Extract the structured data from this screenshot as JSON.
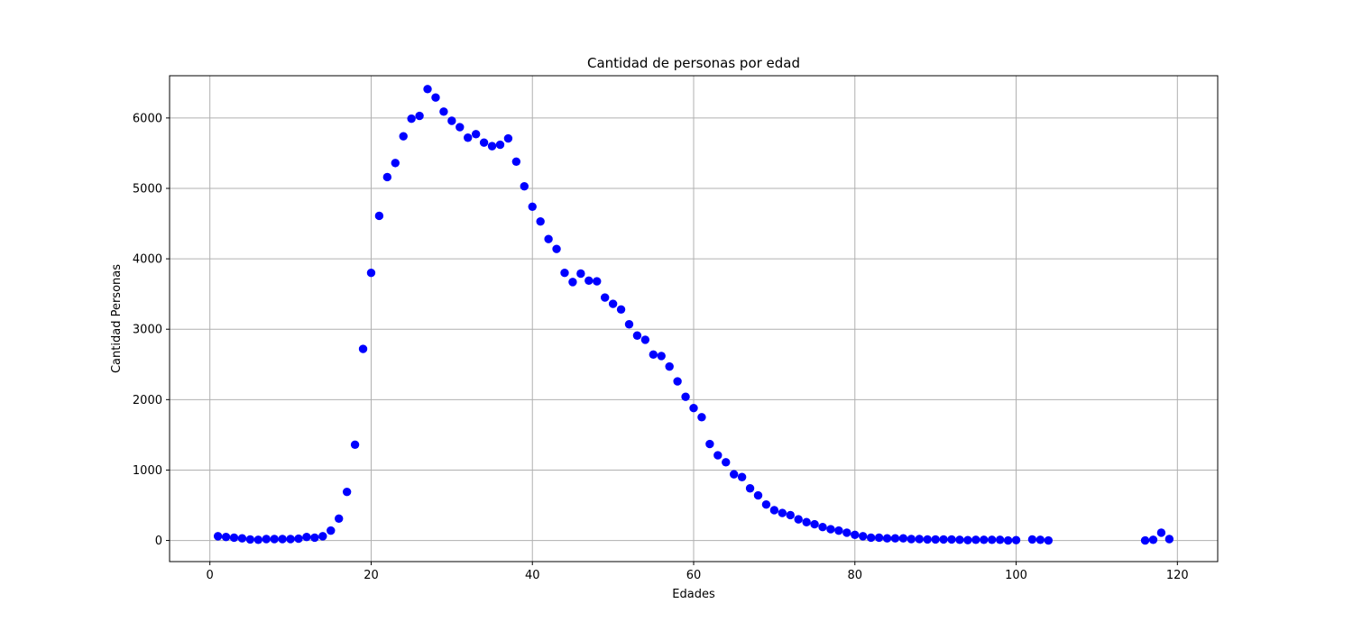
{
  "chart_data": {
    "type": "scatter",
    "title": "Cantidad de personas por edad",
    "xlabel": "Edades",
    "ylabel": "Cantidad Personas",
    "xlim": [
      -5,
      125
    ],
    "ylim": [
      -300,
      6600
    ],
    "xticks": [
      0,
      20,
      40,
      60,
      80,
      100,
      120
    ],
    "yticks": [
      0,
      1000,
      2000,
      3000,
      4000,
      5000,
      6000
    ],
    "grid": true,
    "marker_color": "#0000ff",
    "series": [
      {
        "x": [
          1,
          2,
          3,
          4,
          5,
          6,
          7,
          8,
          9,
          10,
          11,
          12,
          13,
          14,
          15,
          16,
          17,
          18,
          19,
          20,
          21,
          22,
          23,
          24,
          25,
          26,
          27,
          28,
          29,
          30,
          31,
          32,
          33,
          34,
          35,
          36,
          37,
          38,
          39,
          40,
          41,
          42,
          43,
          44,
          45,
          46,
          47,
          48,
          49,
          50,
          51,
          52,
          53,
          54,
          55,
          56,
          57,
          58,
          59,
          60,
          61,
          62,
          63,
          64,
          65,
          66,
          67,
          68,
          69,
          70,
          71,
          72,
          73,
          74,
          75,
          76,
          77,
          78,
          79,
          80,
          81,
          82,
          83,
          84,
          85,
          86,
          87,
          88,
          89,
          90,
          91,
          92,
          93,
          94,
          95,
          96,
          97,
          98,
          99,
          100,
          102,
          103,
          104,
          116,
          117,
          118,
          119
        ],
        "y": [
          60,
          50,
          40,
          30,
          15,
          10,
          20,
          20,
          20,
          20,
          25,
          50,
          40,
          60,
          140,
          310,
          690,
          1360,
          2720,
          3800,
          4610,
          5160,
          5360,
          5740,
          5990,
          6030,
          6410,
          6290,
          6090,
          5960,
          5870,
          5720,
          5770,
          5650,
          5600,
          5620,
          5710,
          5380,
          5030,
          4740,
          4530,
          4280,
          4140,
          3800,
          3670,
          3790,
          3690,
          3680,
          3450,
          3360,
          3280,
          3070,
          2910,
          2850,
          2640,
          2620,
          2470,
          2260,
          2040,
          1880,
          1750,
          1370,
          1210,
          1110,
          940,
          900,
          740,
          640,
          510,
          430,
          390,
          360,
          300,
          260,
          230,
          190,
          160,
          140,
          110,
          80,
          60,
          40,
          40,
          30,
          30,
          30,
          20,
          20,
          15,
          15,
          15,
          15,
          10,
          5,
          10,
          10,
          10,
          10,
          0,
          5,
          15,
          10,
          0,
          0,
          10,
          110,
          20
        ]
      }
    ]
  }
}
